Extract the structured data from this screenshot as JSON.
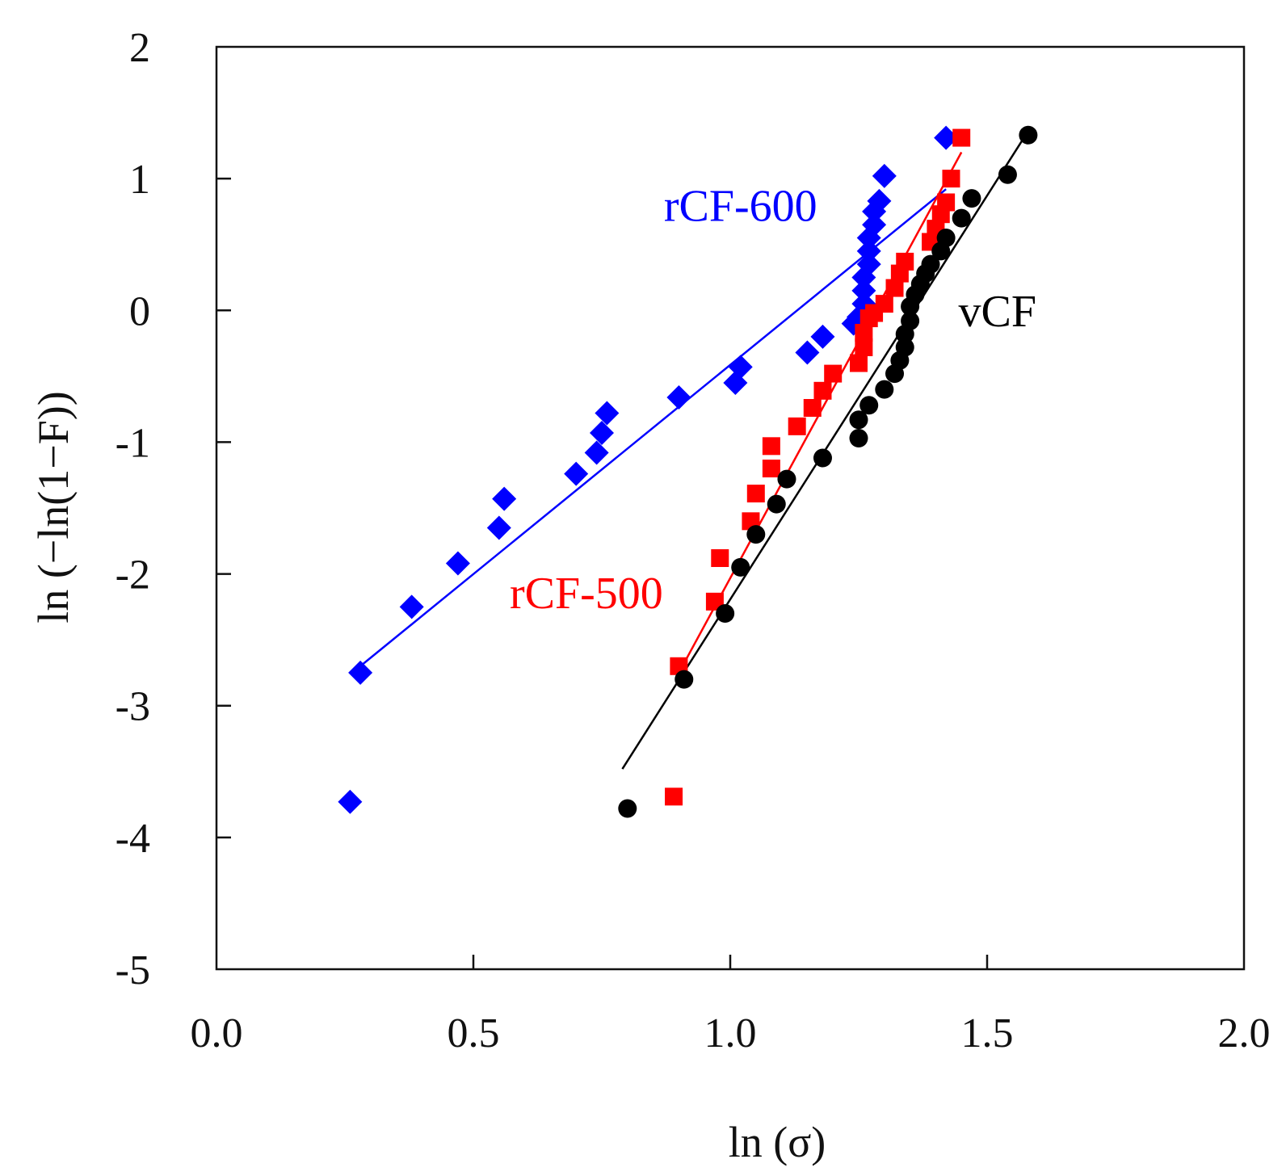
{
  "chart_data": {
    "type": "scatter",
    "title": "",
    "xlabel": "ln (σ)",
    "ylabel": "ln (−ln(1−F))",
    "xlim": [
      0.0,
      2.0
    ],
    "ylim": [
      -5,
      2
    ],
    "xticks": [
      0.0,
      0.5,
      1.0,
      1.5,
      2.0
    ],
    "xtick_labels": [
      "0.0",
      "0.5",
      "1.0",
      "1.5",
      "2.0"
    ],
    "yticks": [
      -5,
      -4,
      -3,
      -2,
      -1,
      0,
      1,
      2
    ],
    "ytick_labels": [
      "-5",
      "-4",
      "-3",
      "-2",
      "-1",
      "0",
      "1",
      "2"
    ],
    "grid": false,
    "legend": "none",
    "series": [
      {
        "name": "rCF-600",
        "label": "rCF-600",
        "color": "#0000ff",
        "marker": "diamond",
        "points": [
          [
            0.26,
            -3.73
          ],
          [
            0.28,
            -2.75
          ],
          [
            0.38,
            -2.25
          ],
          [
            0.47,
            -1.92
          ],
          [
            0.55,
            -1.65
          ],
          [
            0.56,
            -1.43
          ],
          [
            0.7,
            -1.24
          ],
          [
            0.74,
            -1.08
          ],
          [
            0.75,
            -0.93
          ],
          [
            0.76,
            -0.78
          ],
          [
            0.9,
            -0.66
          ],
          [
            1.01,
            -0.55
          ],
          [
            1.02,
            -0.43
          ],
          [
            1.15,
            -0.32
          ],
          [
            1.18,
            -0.2
          ],
          [
            1.24,
            -0.1
          ],
          [
            1.25,
            -0.05
          ],
          [
            1.26,
            0.05
          ],
          [
            1.26,
            0.15
          ],
          [
            1.26,
            0.25
          ],
          [
            1.27,
            0.35
          ],
          [
            1.27,
            0.45
          ],
          [
            1.27,
            0.55
          ],
          [
            1.28,
            0.65
          ],
          [
            1.28,
            0.75
          ],
          [
            1.29,
            0.83
          ],
          [
            1.3,
            1.02
          ],
          [
            1.42,
            1.31
          ]
        ],
        "fit": [
          [
            0.28,
            -2.7
          ],
          [
            1.42,
            0.92
          ]
        ]
      },
      {
        "name": "rCF-500",
        "label": "rCF-500",
        "color": "#ff0000",
        "marker": "square",
        "points": [
          [
            0.89,
            -3.69
          ],
          [
            0.9,
            -2.7
          ],
          [
            0.97,
            -2.21
          ],
          [
            0.98,
            -1.88
          ],
          [
            1.04,
            -1.6
          ],
          [
            1.05,
            -1.39
          ],
          [
            1.08,
            -1.2
          ],
          [
            1.08,
            -1.03
          ],
          [
            1.13,
            -0.88
          ],
          [
            1.16,
            -0.74
          ],
          [
            1.18,
            -0.61
          ],
          [
            1.2,
            -0.48
          ],
          [
            1.25,
            -0.4
          ],
          [
            1.26,
            -0.28
          ],
          [
            1.26,
            -0.17
          ],
          [
            1.27,
            -0.06
          ],
          [
            1.28,
            -0.02
          ],
          [
            1.3,
            0.05
          ],
          [
            1.32,
            0.17
          ],
          [
            1.33,
            0.28
          ],
          [
            1.34,
            0.37
          ],
          [
            1.39,
            0.52
          ],
          [
            1.4,
            0.62
          ],
          [
            1.41,
            0.73
          ],
          [
            1.42,
            0.82
          ],
          [
            1.43,
            1.0
          ],
          [
            1.45,
            1.31
          ]
        ],
        "fit": [
          [
            0.9,
            -2.75
          ],
          [
            1.45,
            1.2
          ]
        ]
      },
      {
        "name": "vCF",
        "label": "vCF",
        "color": "#000000",
        "marker": "circle",
        "points": [
          [
            0.8,
            -3.78
          ],
          [
            0.91,
            -2.8
          ],
          [
            0.99,
            -2.3
          ],
          [
            1.02,
            -1.95
          ],
          [
            1.05,
            -1.7
          ],
          [
            1.09,
            -1.47
          ],
          [
            1.11,
            -1.28
          ],
          [
            1.18,
            -1.12
          ],
          [
            1.25,
            -0.97
          ],
          [
            1.25,
            -0.83
          ],
          [
            1.27,
            -0.72
          ],
          [
            1.3,
            -0.6
          ],
          [
            1.32,
            -0.48
          ],
          [
            1.33,
            -0.38
          ],
          [
            1.34,
            -0.28
          ],
          [
            1.34,
            -0.18
          ],
          [
            1.35,
            -0.08
          ],
          [
            1.35,
            0.03
          ],
          [
            1.36,
            0.12
          ],
          [
            1.37,
            0.2
          ],
          [
            1.38,
            0.28
          ],
          [
            1.39,
            0.35
          ],
          [
            1.41,
            0.45
          ],
          [
            1.42,
            0.55
          ],
          [
            1.45,
            0.7
          ],
          [
            1.47,
            0.85
          ],
          [
            1.54,
            1.03
          ],
          [
            1.58,
            1.33
          ]
        ],
        "fit": [
          [
            0.79,
            -3.48
          ],
          [
            1.57,
            1.3
          ]
        ]
      }
    ],
    "annotations": [
      {
        "text": "rCF-600",
        "x": 1.02,
        "y": 0.68,
        "color": "#0000ff"
      },
      {
        "text": "rCF-500",
        "x": 0.72,
        "y": -2.26,
        "color": "#ff0000"
      },
      {
        "text": "vCF",
        "x": 1.52,
        "y": -0.12,
        "color": "#000000"
      }
    ]
  }
}
